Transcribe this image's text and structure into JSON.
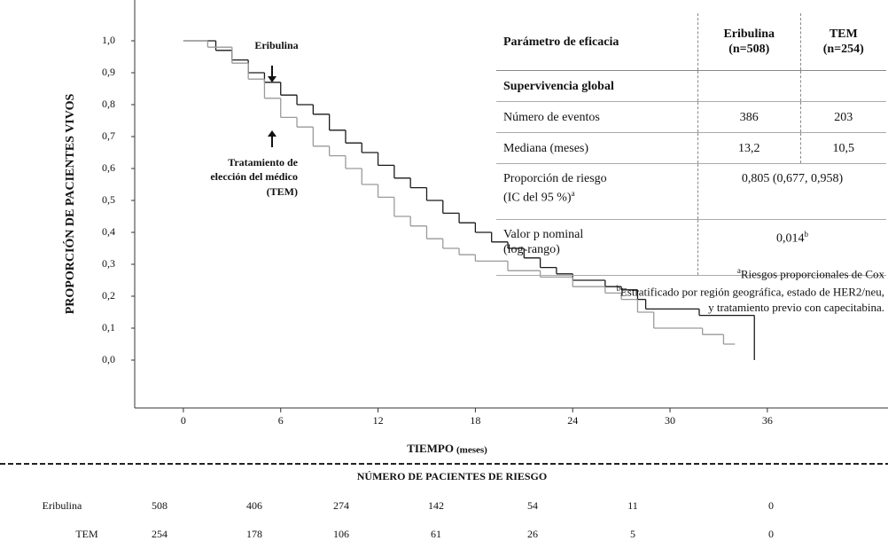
{
  "chart_data": {
    "type": "step",
    "y_label": "PROPORCIÓN DE PACIENTES VIVOS",
    "x_label": "TIEMPO",
    "x_label_unit": "(meses)",
    "xlim": [
      -3,
      43
    ],
    "xticks": [
      0,
      6,
      12,
      18,
      24,
      30,
      36
    ],
    "ylim": [
      -0.15,
      1.1
    ],
    "yticks": [
      {
        "value": 0,
        "label": "0,0"
      },
      {
        "value": 0.1,
        "label": "0,1"
      },
      {
        "value": 0.2,
        "label": "0,2"
      },
      {
        "value": 0.3,
        "label": "0,3"
      },
      {
        "value": 0.4,
        "label": "0,4"
      },
      {
        "value": 0.5,
        "label": "0,5"
      },
      {
        "value": 0.6,
        "label": "0,6"
      },
      {
        "value": 0.7,
        "label": "0,7"
      },
      {
        "value": 0.8,
        "label": "0,8"
      },
      {
        "value": 0.9,
        "label": "0,9"
      },
      {
        "value": 1,
        "label": "1,0"
      }
    ],
    "annotations": {
      "eribulina": "Eribulina",
      "tem": [
        "Tratamiento de",
        "elección del médico",
        "(TEM)"
      ]
    },
    "series": [
      {
        "name": "Eribulina",
        "color": "#1a1a1a",
        "x": [
          0,
          2,
          3,
          4,
          5,
          6,
          7,
          8,
          9,
          10,
          11,
          12,
          13,
          14,
          15,
          16,
          17,
          18,
          19,
          20,
          21,
          22,
          23,
          24,
          26,
          27,
          28,
          28.5,
          31.8,
          35.2
        ],
        "values": [
          1,
          0.97,
          0.94,
          0.9,
          0.87,
          0.83,
          0.8,
          0.77,
          0.72,
          0.68,
          0.65,
          0.61,
          0.57,
          0.54,
          0.5,
          0.46,
          0.43,
          0.4,
          0.37,
          0.35,
          0.32,
          0.29,
          0.27,
          0.25,
          0.23,
          0.22,
          0.19,
          0.16,
          0.14,
          0
        ]
      },
      {
        "name": "TEM",
        "color": "#9a9a9a",
        "x": [
          0,
          1.5,
          3,
          4,
          5,
          6,
          7,
          8,
          9,
          10,
          11,
          12,
          13,
          14,
          15,
          16,
          17,
          18,
          20,
          22,
          24,
          26,
          27,
          28,
          29,
          32,
          33.3,
          34
        ],
        "values": [
          1,
          0.98,
          0.93,
          0.88,
          0.82,
          0.76,
          0.73,
          0.67,
          0.64,
          0.6,
          0.55,
          0.51,
          0.45,
          0.42,
          0.38,
          0.35,
          0.33,
          0.31,
          0.28,
          0.26,
          0.23,
          0.21,
          0.19,
          0.15,
          0.1,
          0.08,
          0.05,
          0.05
        ]
      }
    ]
  },
  "efficacy_table": {
    "header": [
      "Parámetro de eficacia",
      [
        "Eribulina",
        "(n=508)"
      ],
      [
        "TEM",
        "(n=254)"
      ]
    ],
    "section": "Supervivencia global",
    "rows": [
      {
        "label": "Número de eventos",
        "eribulina": "386",
        "tem": "203"
      },
      {
        "label": "Mediana (meses)",
        "eribulina": "13,2",
        "tem": "10,5"
      },
      {
        "label": [
          "Proporción de riesgo",
          "(IC del 95 %)"
        ],
        "label_note": "a",
        "combined": "0,805 (0,677, 0,958)"
      },
      {
        "label": [
          "Valor p nominal",
          "(log-rango)"
        ],
        "combined": "0,014",
        "combined_note": "b"
      }
    ]
  },
  "footnotes": [
    {
      "mark": "a",
      "text": "Riesgos proporcionales de Cox"
    },
    {
      "mark": "b",
      "text": "Estratificado por región geográfica, estado de HER2/neu, y tratamiento previo con capecitabina."
    }
  ],
  "risk_table": {
    "title": "NÚMERO DE PACIENTES DE RIESGO",
    "rows": [
      {
        "name": "Eribulina",
        "values": [
          "508",
          "406",
          "274",
          "142",
          "54",
          "11",
          "0"
        ]
      },
      {
        "name": "TEM",
        "values": [
          "254",
          "178",
          "106",
          "61",
          "26",
          "5",
          "0"
        ]
      }
    ]
  }
}
